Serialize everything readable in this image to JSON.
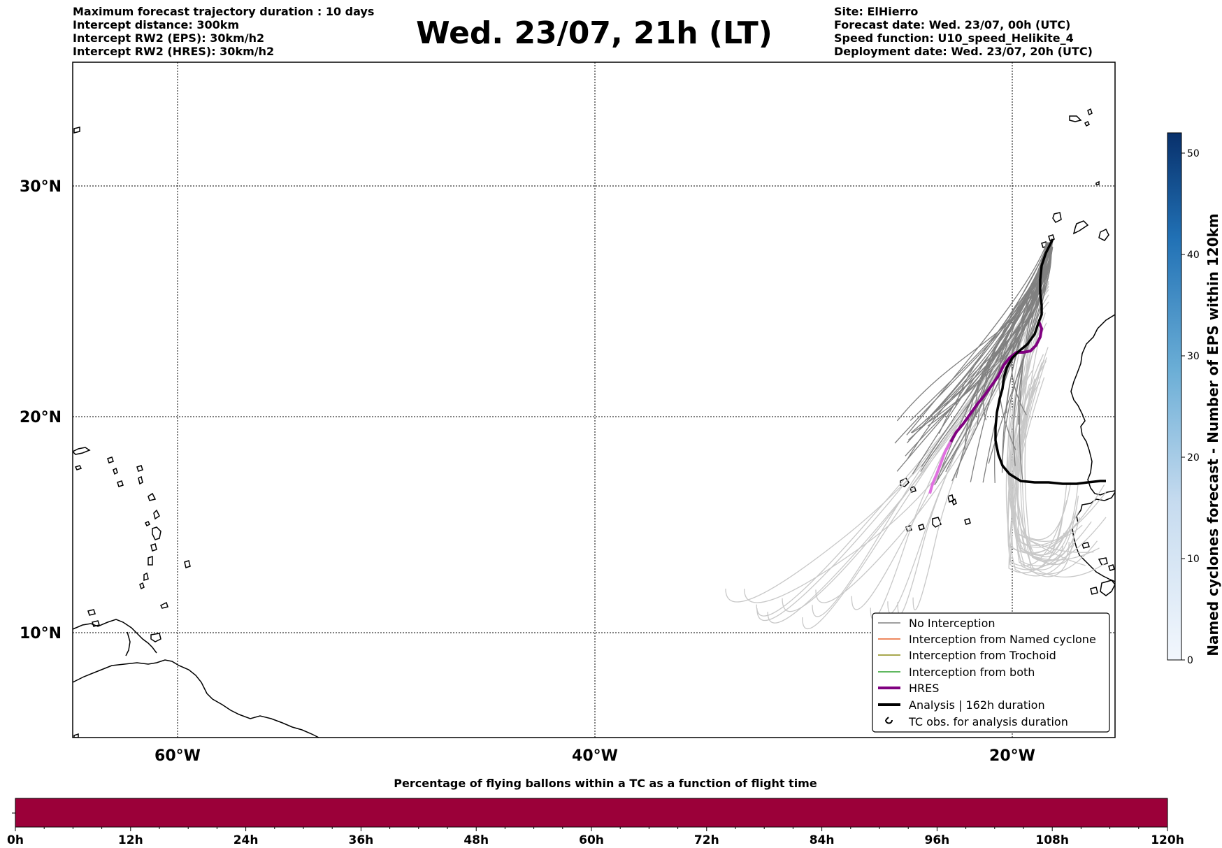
{
  "header": {
    "left_lines": [
      "Maximum forecast trajectory duration : 10 days",
      "Intercept distance: 300km",
      "Intercept RW2 (EPS):  30km/h2",
      "Intercept RW2 (HRES): 30km/h2"
    ],
    "title": "Wed. 23/07, 21h (LT)",
    "right_lines": [
      "Site: ElHierro",
      "Forecast date: Wed. 23/07, 00h (UTC)",
      "Speed function: U10_speed_Helikite_4",
      "Deployment date: Wed. 23/07, 20h (UTC)"
    ]
  },
  "map": {
    "lat_labels": [
      "30°N",
      "20°N",
      "10°N"
    ],
    "lon_labels": [
      "60°W",
      "40°W",
      "20°W"
    ],
    "colors": {
      "no_interception": "#808080",
      "ensemble_far": "#c8c8c8",
      "hres": "#800080",
      "hres_light": "#e070e0",
      "analysis": "#000000"
    }
  },
  "legend": {
    "items": [
      {
        "label": "No Interception",
        "color": "#808080",
        "style": "thin"
      },
      {
        "label": "Interception from Named cyclone",
        "color": "#e8602a",
        "style": "thin"
      },
      {
        "label": "Interception from Trochoid",
        "color": "#8c8c14",
        "style": "thin"
      },
      {
        "label": "Interception from both",
        "color": "#2ca02c",
        "style": "thin"
      },
      {
        "label": "HRES",
        "color": "#800080",
        "style": "thick"
      },
      {
        "label": "Analysis | 162h duration",
        "color": "#000000",
        "style": "thick"
      },
      {
        "label": "TC obs. for analysis duration",
        "color": "#000000",
        "style": "symbol"
      }
    ]
  },
  "colorbar": {
    "label": "Named cyclones forecast - Number of EPS within 120km",
    "ticks": [
      "0",
      "10",
      "20",
      "30",
      "40",
      "50"
    ],
    "range": [
      0,
      52
    ]
  },
  "timebar": {
    "title": "Percentage of flying ballons within a TC as a function of flight time",
    "ticks": [
      "0h",
      "12h",
      "24h",
      "36h",
      "48h",
      "60h",
      "72h",
      "84h",
      "96h",
      "108h",
      "120h"
    ],
    "fill_color": "#9b0039"
  }
}
